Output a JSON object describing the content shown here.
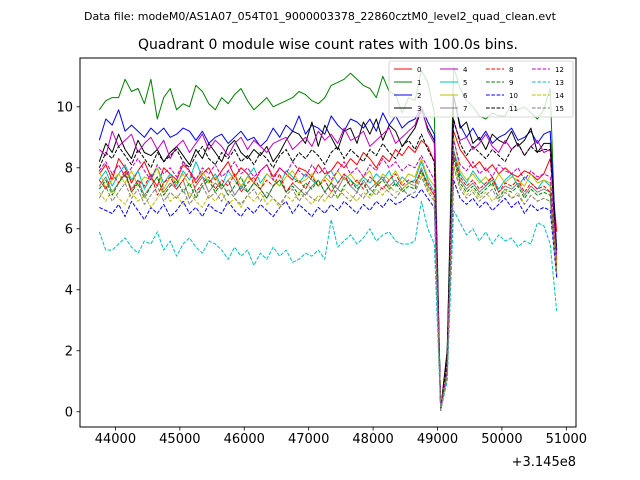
{
  "header": "Data file: modeM0/AS1A07_054T01_9000003378_22860cztM0_level2_quad_clean.evt",
  "chart_data": {
    "type": "line",
    "title": "Quadrant 0 module wise count rates with 100.0s bins.",
    "xlabel": "",
    "ylabel": "",
    "x_offset_label": "+3.145e8",
    "xlim": [
      43450,
      51150
    ],
    "ylim": [
      -0.5,
      11.6
    ],
    "xticks": [
      44000,
      45000,
      46000,
      47000,
      48000,
      49000,
      50000,
      51000
    ],
    "yticks": [
      0,
      2,
      4,
      6,
      8,
      10
    ],
    "legend_position": "top-right",
    "x_start": 43750,
    "x_step": 100,
    "series": [
      {
        "name": "0",
        "color": "#ff0000",
        "dash": false,
        "values": [
          7.8,
          8.1,
          7.6,
          8.3,
          8.0,
          7.5,
          7.9,
          8.2,
          7.7,
          7.4,
          8.0,
          7.8,
          7.6,
          8.1,
          7.9,
          7.5,
          7.8,
          8.0,
          7.6,
          7.9,
          8.2,
          7.7,
          8.0,
          7.8,
          7.5,
          7.9,
          8.1,
          7.7,
          8.0,
          7.8,
          7.6,
          8.0,
          7.9,
          7.7,
          8.1,
          7.8,
          7.9,
          8.2,
          8.0,
          8.3,
          8.1,
          8.5,
          8.3,
          8.0,
          8.4,
          8.2,
          8.6,
          8.4,
          8.7,
          8.5,
          8.9,
          8.7,
          8.2,
          0.1,
          1.5,
          9.2,
          8.6,
          8.3,
          8.0,
          8.2,
          7.9,
          8.1,
          7.8,
          8.0,
          7.8,
          7.7,
          7.9,
          7.8,
          7.6,
          7.8,
          8.3,
          5.9
        ]
      },
      {
        "name": "1",
        "color": "#008000",
        "dash": false,
        "values": [
          9.9,
          10.2,
          10.3,
          10.3,
          10.9,
          10.5,
          10.6,
          10.1,
          10.9,
          9.6,
          10.3,
          10.6,
          9.9,
          10.1,
          10.0,
          10.7,
          10.5,
          10.1,
          9.9,
          10.3,
          10.1,
          10.4,
          10.6,
          10.2,
          9.9,
          10.1,
          10.3,
          10.0,
          10.1,
          10.2,
          10.3,
          10.5,
          10.4,
          10.2,
          10.1,
          10.3,
          10.7,
          10.8,
          10.9,
          11.1,
          10.9,
          10.7,
          10.6,
          10.3,
          11.0,
          10.5,
          10.4,
          9.8,
          10.3,
          10.2,
          11.2,
          10.8,
          9.8,
          0.05,
          1.9,
          11.3,
          10.6,
          10.2,
          10.0,
          9.7,
          9.6,
          9.8,
          9.7,
          9.7,
          10.1,
          9.9,
          10.0,
          9.8,
          9.6,
          9.9,
          10.6,
          4.4
        ]
      },
      {
        "name": "2",
        "color": "#0000ff",
        "dash": false,
        "values": [
          8.9,
          9.6,
          9.4,
          9.9,
          9.2,
          9.4,
          9.2,
          9.0,
          9.3,
          9.1,
          9.3,
          9.0,
          9.1,
          9.3,
          9.2,
          8.9,
          9.2,
          8.8,
          9.0,
          9.1,
          8.8,
          9.0,
          9.2,
          8.9,
          9.0,
          8.7,
          8.9,
          9.3,
          9.0,
          9.4,
          9.2,
          9.7,
          9.1,
          9.4,
          9.3,
          9.1,
          9.7,
          9.4,
          9.2,
          9.6,
          9.5,
          9.3,
          9.6,
          9.2,
          9.8,
          9.4,
          9.7,
          9.3,
          9.5,
          9.6,
          10.0,
          9.5,
          9.1,
          0.05,
          1.8,
          10.3,
          9.4,
          9.0,
          9.3,
          8.9,
          9.2,
          8.8,
          9.0,
          9.1,
          9.3,
          8.9,
          9.0,
          9.2,
          8.8,
          9.1,
          9.2,
          5.3
        ]
      },
      {
        "name": "3",
        "color": "#000000",
        "dash": false,
        "values": [
          8.2,
          8.8,
          8.5,
          9.1,
          8.6,
          8.3,
          8.9,
          8.5,
          8.4,
          8.6,
          8.2,
          8.5,
          8.7,
          8.4,
          8.1,
          8.6,
          8.3,
          8.8,
          8.5,
          8.2,
          8.7,
          8.9,
          8.5,
          8.3,
          8.6,
          8.4,
          8.7,
          8.2,
          8.5,
          8.9,
          9.2,
          9.1,
          8.8,
          9.5,
          8.7,
          9.4,
          9.0,
          8.6,
          9.2,
          9.3,
          8.8,
          9.5,
          9.1,
          9.6,
          8.9,
          9.4,
          9.2,
          8.7,
          9.0,
          9.3,
          9.9,
          9.3,
          8.9,
          0.1,
          2.0,
          10.4,
          9.3,
          9.5,
          8.8,
          9.0,
          8.6,
          9.1,
          8.9,
          8.8,
          9.2,
          8.7,
          8.9,
          9.3,
          8.5,
          8.8,
          8.8,
          5.0
        ]
      },
      {
        "name": "4",
        "color": "#bf00bf",
        "dash": false,
        "values": [
          8.6,
          8.4,
          9.2,
          8.7,
          8.9,
          9.1,
          8.5,
          8.8,
          9.0,
          8.6,
          8.9,
          8.3,
          8.7,
          8.9,
          8.5,
          8.8,
          9.1,
          8.6,
          8.9,
          8.7,
          8.4,
          8.8,
          9.0,
          8.6,
          8.9,
          8.7,
          8.5,
          8.8,
          8.9,
          9.0,
          8.6,
          8.8,
          9.0,
          8.7,
          9.2,
          8.9,
          9.1,
          8.8,
          9.3,
          8.9,
          9.0,
          9.2,
          8.7,
          8.9,
          9.1,
          9.3,
          8.8,
          9.0,
          9.2,
          9.4,
          10.0,
          9.2,
          8.8,
          0.1,
          1.5,
          9.5,
          8.9,
          9.0,
          8.6,
          8.8,
          9.1,
          8.7,
          8.5,
          8.9,
          8.6,
          8.8,
          8.4,
          8.7,
          8.9,
          8.5,
          8.6,
          4.8
        ]
      },
      {
        "name": "5",
        "color": "#00bfbf",
        "dash": false,
        "values": [
          7.6,
          7.9,
          7.4,
          7.8,
          8.1,
          7.6,
          7.9,
          7.3,
          7.7,
          8.0,
          7.5,
          7.8,
          7.4,
          7.9,
          7.6,
          8.2,
          7.7,
          7.5,
          7.8,
          7.4,
          7.9,
          7.6,
          7.3,
          7.7,
          8.0,
          7.5,
          7.8,
          7.6,
          7.4,
          7.9,
          7.7,
          7.5,
          7.8,
          7.6,
          7.4,
          7.7,
          7.9,
          7.5,
          7.8,
          7.6,
          7.4,
          7.7,
          7.5,
          7.8,
          7.6,
          7.9,
          7.4,
          7.7,
          7.5,
          7.6,
          8.2,
          7.6,
          7.2,
          0.05,
          1.4,
          8.6,
          7.8,
          7.5,
          7.9,
          7.6,
          7.4,
          7.7,
          7.3,
          7.6,
          7.8,
          7.4,
          7.7,
          7.5,
          7.3,
          7.6,
          7.4,
          4.5
        ]
      },
      {
        "name": "6",
        "color": "#bfbf00",
        "dash": false,
        "values": [
          7.9,
          7.3,
          7.6,
          7.8,
          7.5,
          7.9,
          7.4,
          7.7,
          7.6,
          8.0,
          7.3,
          7.7,
          7.5,
          7.8,
          7.4,
          7.6,
          7.9,
          7.5,
          7.7,
          7.3,
          7.6,
          7.8,
          7.4,
          7.7,
          7.5,
          7.3,
          7.8,
          7.6,
          7.4,
          7.7,
          7.9,
          7.5,
          7.6,
          7.8,
          7.4,
          7.7,
          7.5,
          7.9,
          7.6,
          7.8,
          7.5,
          7.7,
          7.9,
          7.4,
          7.8,
          7.6,
          7.9,
          7.5,
          7.8,
          7.7,
          8.3,
          7.7,
          7.4,
          0.05,
          1.6,
          9.0,
          7.9,
          7.6,
          7.8,
          7.5,
          7.7,
          7.4,
          7.8,
          7.5,
          7.7,
          7.6,
          7.4,
          7.8,
          7.5,
          7.6,
          7.5,
          4.9
        ]
      },
      {
        "name": "7",
        "color": "#808080",
        "dash": false,
        "values": [
          7.4,
          7.7,
          7.2,
          7.5,
          7.8,
          7.3,
          7.6,
          7.1,
          7.4,
          7.7,
          7.2,
          7.5,
          7.3,
          7.6,
          7.0,
          7.4,
          7.7,
          7.2,
          7.5,
          7.3,
          7.6,
          7.1,
          7.4,
          7.2,
          7.5,
          7.3,
          7.0,
          7.4,
          7.6,
          7.2,
          7.5,
          7.3,
          7.1,
          7.4,
          7.6,
          7.2,
          7.5,
          7.3,
          7.7,
          7.4,
          7.2,
          7.6,
          7.3,
          7.5,
          7.7,
          7.4,
          7.6,
          7.3,
          7.5,
          7.4,
          8.0,
          7.4,
          7.1,
          0.05,
          1.3,
          8.4,
          7.6,
          7.3,
          7.5,
          7.2,
          7.4,
          7.6,
          7.2,
          7.4,
          7.3,
          7.5,
          7.1,
          7.4,
          7.2,
          7.3,
          7.2,
          4.6
        ]
      },
      {
        "name": "8",
        "color": "#ff0000",
        "dash": true,
        "values": [
          7.6,
          7.3,
          7.8,
          7.5,
          7.9,
          7.2,
          7.6,
          7.4,
          7.8,
          7.1,
          7.5,
          7.7,
          7.3,
          7.6,
          7.9,
          7.2,
          7.5,
          7.7,
          7.3,
          7.6,
          7.4,
          7.8,
          7.2,
          7.5,
          7.7,
          7.3,
          7.6,
          7.4,
          7.8,
          7.2,
          7.5,
          7.6,
          7.3,
          7.7,
          7.4,
          7.6,
          7.2,
          7.5,
          7.8,
          7.4,
          7.6,
          7.3,
          7.7,
          7.5,
          7.3,
          7.6,
          7.8,
          7.4,
          7.6,
          7.5,
          7.9,
          7.5,
          7.1,
          0.05,
          1.3,
          8.5,
          7.7,
          7.4,
          7.6,
          7.3,
          7.5,
          7.7,
          7.2,
          7.5,
          7.4,
          7.6,
          7.2,
          7.5,
          7.3,
          7.4,
          7.2,
          4.7
        ]
      },
      {
        "name": "9",
        "color": "#008000",
        "dash": true,
        "values": [
          7.3,
          7.6,
          7.1,
          7.5,
          7.8,
          7.2,
          7.5,
          7.0,
          7.4,
          7.7,
          7.1,
          7.4,
          7.6,
          7.2,
          7.5,
          7.0,
          7.4,
          7.6,
          7.2,
          7.5,
          7.1,
          7.4,
          7.7,
          7.2,
          7.5,
          7.3,
          7.0,
          7.4,
          7.6,
          7.2,
          7.4,
          7.1,
          7.5,
          7.3,
          7.6,
          7.2,
          7.5,
          7.0,
          7.4,
          7.6,
          7.3,
          7.5,
          7.1,
          7.4,
          7.6,
          7.3,
          7.5,
          7.2,
          7.4,
          7.3,
          7.9,
          7.3,
          7.0,
          0.05,
          1.2,
          8.3,
          7.5,
          7.2,
          7.4,
          7.1,
          7.3,
          7.5,
          7.0,
          7.3,
          7.2,
          7.4,
          7.0,
          7.3,
          7.1,
          7.2,
          7.1,
          4.5
        ]
      },
      {
        "name": "10",
        "color": "#0000ff",
        "dash": true,
        "values": [
          6.7,
          6.6,
          6.5,
          6.8,
          6.4,
          6.9,
          6.6,
          6.3,
          6.7,
          6.5,
          6.8,
          6.4,
          6.6,
          6.9,
          6.5,
          6.7,
          6.4,
          6.8,
          6.6,
          6.5,
          6.9,
          6.6,
          6.4,
          6.7,
          6.5,
          6.8,
          6.6,
          6.4,
          6.7,
          6.9,
          6.5,
          6.8,
          6.6,
          6.4,
          6.7,
          6.5,
          6.8,
          6.6,
          6.9,
          6.7,
          6.5,
          6.8,
          6.6,
          6.9,
          6.7,
          7.0,
          6.8,
          6.9,
          7.1,
          7.0,
          7.3,
          7.0,
          6.7,
          0.05,
          1.1,
          7.6,
          7.0,
          6.8,
          7.0,
          6.7,
          6.9,
          6.6,
          6.8,
          7.0,
          6.7,
          6.9,
          6.5,
          6.8,
          6.6,
          6.7,
          6.6,
          4.4
        ]
      },
      {
        "name": "11",
        "color": "#000000",
        "dash": true,
        "values": [
          8.0,
          8.5,
          8.3,
          8.7,
          8.4,
          8.1,
          8.6,
          8.3,
          8.0,
          8.5,
          8.2,
          8.4,
          8.6,
          8.2,
          8.0,
          8.4,
          8.7,
          8.3,
          8.1,
          8.5,
          8.3,
          8.6,
          8.2,
          8.4,
          8.1,
          8.5,
          8.3,
          8.0,
          8.4,
          8.6,
          8.2,
          8.5,
          8.3,
          8.6,
          8.4,
          8.1,
          8.5,
          8.7,
          8.3,
          8.6,
          8.4,
          8.2,
          8.6,
          8.4,
          8.8,
          8.5,
          8.3,
          8.7,
          8.9,
          8.6,
          9.1,
          8.6,
          8.2,
          0.05,
          1.6,
          9.6,
          8.8,
          8.4,
          8.7,
          8.5,
          8.3,
          8.6,
          8.4,
          8.2,
          8.6,
          8.8,
          8.4,
          8.7,
          8.5,
          8.6,
          8.6,
          5.3
        ]
      },
      {
        "name": "12",
        "color": "#bf00bf",
        "dash": true,
        "values": [
          7.9,
          8.2,
          7.8,
          8.1,
          7.7,
          8.0,
          8.3,
          7.9,
          7.6,
          8.1,
          7.8,
          8.0,
          7.7,
          8.2,
          7.9,
          7.6,
          8.0,
          7.8,
          8.1,
          7.7,
          7.9,
          8.2,
          7.8,
          8.0,
          7.7,
          7.9,
          8.1,
          7.6,
          8.0,
          7.8,
          8.2,
          7.9,
          7.7,
          8.1,
          7.8,
          8.0,
          7.6,
          7.9,
          8.2,
          7.8,
          8.0,
          7.7,
          8.1,
          7.9,
          8.3,
          8.0,
          8.2,
          7.9,
          8.1,
          8.0,
          8.4,
          8.0,
          7.6,
          0.05,
          1.4,
          8.9,
          8.1,
          7.9,
          8.2,
          7.8,
          8.0,
          7.7,
          8.1,
          7.9,
          7.8,
          8.0,
          7.6,
          7.9,
          7.7,
          7.8,
          7.7,
          5.1
        ]
      },
      {
        "name": "13",
        "color": "#00bfbf",
        "dash": true,
        "values": [
          5.9,
          5.3,
          5.3,
          5.5,
          5.7,
          5.4,
          5.2,
          5.6,
          5.5,
          5.9,
          5.3,
          5.6,
          5.1,
          5.5,
          5.7,
          5.4,
          5.2,
          5.6,
          5.5,
          5.3,
          5.0,
          5.4,
          5.1,
          5.3,
          4.8,
          5.2,
          5.0,
          5.4,
          5.1,
          5.3,
          4.9,
          5.0,
          5.2,
          5.1,
          5.3,
          5.0,
          6.3,
          5.4,
          5.6,
          5.8,
          5.5,
          5.7,
          6.0,
          5.6,
          5.8,
          5.9,
          5.6,
          5.5,
          5.5,
          5.6,
          6.9,
          6.0,
          5.5,
          0.05,
          1.0,
          6.6,
          6.2,
          5.8,
          6.0,
          5.6,
          5.9,
          5.5,
          5.8,
          5.6,
          5.7,
          5.4,
          5.6,
          5.5,
          6.2,
          6.1,
          5.5,
          3.3
        ]
      },
      {
        "name": "14",
        "color": "#bfbf00",
        "dash": true,
        "values": [
          7.2,
          6.9,
          7.3,
          7.0,
          6.8,
          7.2,
          6.9,
          7.1,
          6.7,
          7.0,
          7.3,
          6.9,
          7.1,
          6.8,
          7.2,
          6.9,
          6.7,
          7.1,
          6.9,
          7.2,
          6.8,
          7.0,
          6.7,
          7.1,
          6.9,
          7.2,
          6.8,
          7.0,
          6.7,
          7.1,
          6.9,
          7.2,
          7.0,
          6.8,
          7.1,
          6.9,
          7.2,
          7.0,
          7.3,
          7.1,
          6.9,
          7.2,
          7.0,
          7.3,
          7.1,
          7.4,
          7.2,
          7.3,
          7.5,
          7.4,
          7.8,
          7.3,
          7.0,
          0.05,
          1.2,
          8.1,
          7.4,
          7.1,
          7.3,
          7.0,
          7.2,
          6.9,
          7.1,
          7.3,
          7.0,
          7.2,
          6.8,
          7.1,
          6.9,
          7.0,
          6.9,
          4.6
        ]
      },
      {
        "name": "15",
        "color": "#808080",
        "dash": true,
        "values": [
          7.0,
          7.4,
          6.9,
          7.2,
          7.5,
          7.0,
          7.3,
          6.8,
          7.1,
          7.4,
          6.9,
          7.2,
          7.0,
          7.3,
          6.8,
          7.1,
          7.4,
          7.0,
          7.2,
          6.9,
          7.3,
          7.0,
          6.8,
          7.1,
          7.3,
          6.9,
          7.2,
          7.0,
          6.8,
          7.1,
          7.3,
          6.9,
          7.2,
          7.0,
          6.9,
          7.2,
          7.0,
          7.3,
          7.1,
          6.9,
          7.2,
          7.0,
          7.3,
          7.1,
          7.4,
          7.2,
          7.0,
          7.3,
          7.1,
          7.2,
          7.7,
          7.2,
          6.9,
          0.05,
          1.2,
          8.0,
          7.3,
          7.0,
          7.2,
          6.9,
          7.1,
          7.3,
          6.9,
          7.2,
          7.0,
          7.1,
          6.8,
          7.1,
          6.9,
          7.0,
          6.9,
          4.5
        ]
      }
    ]
  }
}
